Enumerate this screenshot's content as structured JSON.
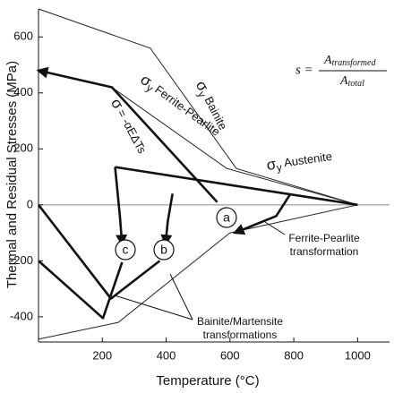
{
  "chart_data": {
    "type": "line",
    "x_label": "Temperature (°C)",
    "y_label": "Thermal and Residual Stresses (MPa)",
    "xlim": [
      0,
      1100
    ],
    "ylim": [
      -490,
      700
    ],
    "xticks": [
      200,
      400,
      600,
      800,
      1000
    ],
    "yticks": [
      -400,
      -200,
      0,
      200,
      400,
      600
    ],
    "zero_line": true,
    "color": "#111111",
    "series": [
      {
        "x": [
          0,
          350,
          620,
          1000
        ],
        "y": [
          700,
          560,
          130,
          0
        ],
        "style": "thin"
      },
      {
        "x": [
          230,
          590,
          1000
        ],
        "y": [
          420,
          130,
          0
        ],
        "style": "thin"
      },
      {
        "x": [
          0,
          250,
          600,
          1000
        ],
        "y": [
          -480,
          -420,
          -100,
          0
        ],
        "style": "thin"
      },
      {
        "x": [
          0,
          230,
          560
        ],
        "y": [
          480,
          420,
          10
        ],
        "style": "bold",
        "arrow": "start"
      },
      {
        "x": [
          240,
          1000
        ],
        "y": [
          135,
          0
        ],
        "style": "bold"
      },
      {
        "x": [
          240,
          255,
          262
        ],
        "y": [
          135,
          -40,
          -140
        ],
        "style": "bold",
        "arrow": "end"
      },
      {
        "x": [
          420,
          405,
          398
        ],
        "y": [
          40,
          -60,
          -140
        ],
        "style": "bold",
        "arrow": "end"
      },
      {
        "x": [
          0,
          227,
          380
        ],
        "y": [
          0,
          -335,
          -200
        ],
        "style": "bold"
      },
      {
        "x": [
          0,
          202,
          262
        ],
        "y": [
          -200,
          -405,
          -205
        ],
        "style": "bold"
      },
      {
        "x": [
          790,
          745,
          615
        ],
        "y": [
          40,
          -40,
          -100
        ],
        "style": "bold",
        "arrow": "end"
      }
    ],
    "annotations": [
      {
        "symbol": "σ",
        "sub": "y",
        "label": "Bainite"
      },
      {
        "symbol": "σ",
        "sub": "y",
        "label": "Ferrite-Pearlite"
      },
      {
        "symbol": "σ",
        "label": "= -αEΔTs"
      },
      {
        "symbol": "σ",
        "sub": "y",
        "label": "Austenite"
      }
    ],
    "markers": [
      "a",
      "b",
      "c"
    ],
    "notes": [
      [
        "Ferrite-Pearlite",
        "transformation"
      ],
      [
        "Bainite/Martensite",
        "transformations"
      ]
    ],
    "formula": {
      "lhs": "s =",
      "numerator": "A",
      "numerator_sub": "transformed",
      "denominator": "A",
      "denominator_sub": "total"
    }
  }
}
